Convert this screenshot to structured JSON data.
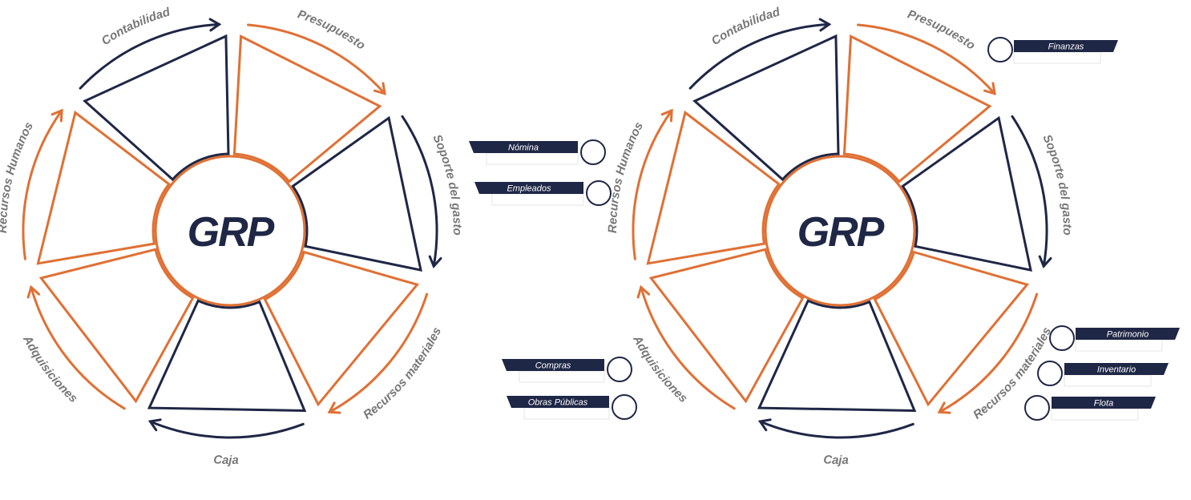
{
  "colors": {
    "navy": "#1f2746",
    "orange": "#e07034",
    "label_gray": "#777777"
  },
  "wheels": [
    {
      "center_label": "GRP",
      "segments": [
        {
          "label": "Presupuesto",
          "color": "orange"
        },
        {
          "label": "Soporte del gasto",
          "color": "navy"
        },
        {
          "label": "Recursos materiales",
          "color": "orange"
        },
        {
          "label": "Caja",
          "color": "navy"
        },
        {
          "label": "Adquisiciones",
          "color": "orange"
        },
        {
          "label": "Recursos Humanos",
          "color": "orange"
        },
        {
          "label": "Contabilidad",
          "color": "navy"
        }
      ]
    },
    {
      "center_label": "GRP",
      "segments": [
        {
          "label": "Presupuesto",
          "color": "orange"
        },
        {
          "label": "Soporte del gasto",
          "color": "navy"
        },
        {
          "label": "Recursos materiales",
          "color": "orange"
        },
        {
          "label": "Caja",
          "color": "navy"
        },
        {
          "label": "Adquisiciones",
          "color": "orange"
        },
        {
          "label": "Recursos Humanos",
          "color": "orange"
        },
        {
          "label": "Contabilidad",
          "color": "navy"
        }
      ]
    }
  ],
  "tags": [
    {
      "label": "Nómina",
      "side": "left"
    },
    {
      "label": "Empleados",
      "side": "left"
    },
    {
      "label": "Compras",
      "side": "left"
    },
    {
      "label": "Obras Públicas",
      "side": "left"
    },
    {
      "label": "Finanzas",
      "side": "right"
    },
    {
      "label": "Patrimonio",
      "side": "right"
    },
    {
      "label": "Inventario",
      "side": "right"
    },
    {
      "label": "Flota",
      "side": "right"
    }
  ]
}
